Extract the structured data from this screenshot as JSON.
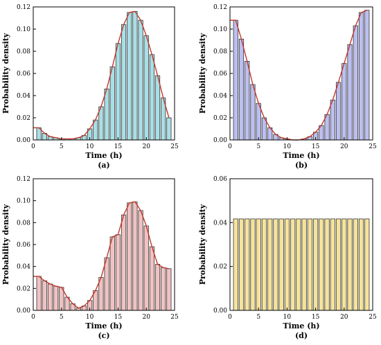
{
  "chart_data": [
    {
      "type": "bar",
      "panel_label": "(a)",
      "xlabel": "Time (h)",
      "ylabel": "Probability density",
      "xlim": [
        0,
        25
      ],
      "ylim": [
        0,
        0.12
      ],
      "xticks": [
        0,
        5,
        10,
        15,
        20,
        25
      ],
      "yticks": [
        "0.00",
        "0.02",
        "0.04",
        "0.06",
        "0.08",
        "0.10",
        "0.12"
      ],
      "bar_color": "#a9dfe6",
      "curve_color": "#c0392b",
      "x": [
        1,
        2,
        3,
        4,
        5,
        6,
        7,
        8,
        9,
        10,
        11,
        12,
        13,
        14,
        15,
        16,
        17,
        18,
        19,
        20,
        21,
        22,
        23,
        24
      ],
      "values": [
        0.011,
        0.006,
        0.003,
        0.002,
        0.001,
        0.001,
        0.001,
        0.002,
        0.004,
        0.01,
        0.018,
        0.03,
        0.046,
        0.066,
        0.087,
        0.104,
        0.115,
        0.116,
        0.108,
        0.094,
        0.077,
        0.058,
        0.038,
        0.02
      ],
      "curve": [
        0.011,
        0.006,
        0.003,
        0.002,
        0.001,
        0.001,
        0.001,
        0.002,
        0.004,
        0.01,
        0.018,
        0.03,
        0.046,
        0.066,
        0.087,
        0.104,
        0.115,
        0.116,
        0.108,
        0.094,
        0.077,
        0.058,
        0.038,
        0.02
      ]
    },
    {
      "type": "bar",
      "panel_label": "(b)",
      "xlabel": "Time (h)",
      "ylabel": "Probability density",
      "xlim": [
        0,
        25
      ],
      "ylim": [
        0,
        0.12
      ],
      "xticks": [
        0,
        5,
        10,
        15,
        20,
        25
      ],
      "yticks": [
        "0.00",
        "0.02",
        "0.04",
        "0.06",
        "0.08",
        "0.10",
        "0.12"
      ],
      "bar_color": "#bcbff0",
      "curve_color": "#c0392b",
      "x": [
        1,
        2,
        3,
        4,
        5,
        6,
        7,
        8,
        9,
        10,
        11,
        12,
        13,
        14,
        15,
        16,
        17,
        18,
        19,
        20,
        21,
        22,
        23,
        24
      ],
      "values": [
        0.108,
        0.091,
        0.071,
        0.05,
        0.033,
        0.02,
        0.011,
        0.005,
        0.002,
        0.001,
        0.0,
        0.0,
        0.001,
        0.003,
        0.007,
        0.013,
        0.023,
        0.036,
        0.052,
        0.069,
        0.086,
        0.103,
        0.115,
        0.117
      ],
      "curve": [
        0.108,
        0.091,
        0.071,
        0.05,
        0.033,
        0.02,
        0.011,
        0.005,
        0.002,
        0.001,
        0.0,
        0.0,
        0.001,
        0.003,
        0.007,
        0.013,
        0.023,
        0.036,
        0.052,
        0.069,
        0.086,
        0.103,
        0.115,
        0.117
      ]
    },
    {
      "type": "bar",
      "panel_label": "(c)",
      "xlabel": "Time (h)",
      "ylabel": "Probability density",
      "xlim": [
        0,
        25
      ],
      "ylim": [
        0,
        0.12
      ],
      "xticks": [
        0,
        5,
        10,
        15,
        20,
        25
      ],
      "yticks": [
        "0.00",
        "0.02",
        "0.04",
        "0.06",
        "0.08",
        "0.10",
        "0.12"
      ],
      "bar_color": "#f1c2c2",
      "curve_color": "#c0392b",
      "x": [
        1,
        2,
        3,
        4,
        5,
        6,
        7,
        8,
        9,
        10,
        11,
        12,
        13,
        14,
        15,
        16,
        17,
        18,
        19,
        20,
        21,
        22,
        23,
        24
      ],
      "values": [
        0.031,
        0.027,
        0.024,
        0.022,
        0.021,
        0.012,
        0.006,
        0.002,
        0.004,
        0.009,
        0.018,
        0.03,
        0.048,
        0.067,
        0.069,
        0.087,
        0.098,
        0.099,
        0.091,
        0.077,
        0.058,
        0.042,
        0.039,
        0.038
      ],
      "curve": [
        0.031,
        0.027,
        0.024,
        0.022,
        0.021,
        0.012,
        0.006,
        0.002,
        0.004,
        0.009,
        0.018,
        0.03,
        0.048,
        0.067,
        0.069,
        0.087,
        0.098,
        0.099,
        0.091,
        0.077,
        0.058,
        0.042,
        0.039,
        0.038
      ]
    },
    {
      "type": "bar",
      "panel_label": "(d)",
      "xlabel": "Time (h)",
      "ylabel": "Probability density",
      "xlim": [
        0,
        25
      ],
      "ylim": [
        0,
        0.06
      ],
      "xticks": [
        0,
        5,
        10,
        15,
        20,
        25
      ],
      "yticks": [
        "0.00",
        "0.02",
        "0.04",
        "0.06"
      ],
      "bar_color": "#f5e39b",
      "curve_color": "",
      "x": [
        1,
        2,
        3,
        4,
        5,
        6,
        7,
        8,
        9,
        10,
        11,
        12,
        13,
        14,
        15,
        16,
        17,
        18,
        19,
        20,
        21,
        22,
        23,
        24
      ],
      "values": [
        0.0417,
        0.0417,
        0.0417,
        0.0417,
        0.0417,
        0.0417,
        0.0417,
        0.0417,
        0.0417,
        0.0417,
        0.0417,
        0.0417,
        0.0417,
        0.0417,
        0.0417,
        0.0417,
        0.0417,
        0.0417,
        0.0417,
        0.0417,
        0.0417,
        0.0417,
        0.0417,
        0.0417
      ],
      "curve": []
    }
  ]
}
